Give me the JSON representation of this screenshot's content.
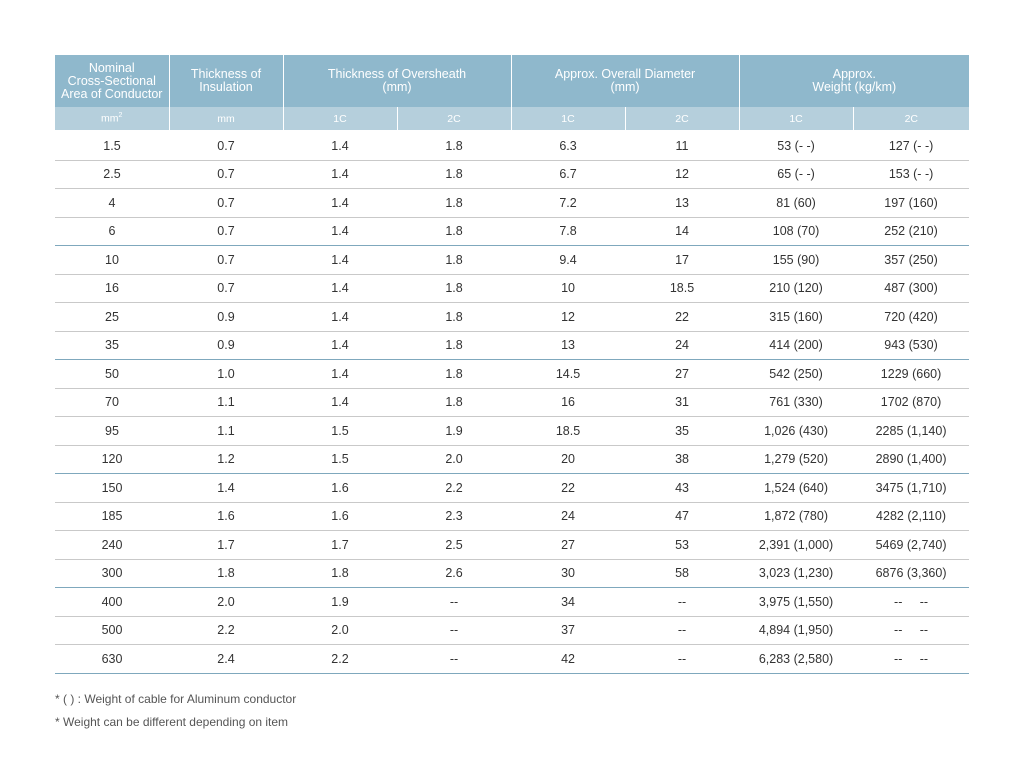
{
  "header": {
    "col0": [
      "Nominal",
      "Cross-Sectional",
      "Area of Conductor"
    ],
    "col1": [
      "Thickness of",
      "Insulation"
    ],
    "col2": [
      "Thickness of Oversheath",
      "(mm)"
    ],
    "col3": [
      "Approx. Overall Diameter",
      "(mm)"
    ],
    "col4": [
      "Approx.",
      "Weight (kg/km)"
    ]
  },
  "units": {
    "area": "mm",
    "area_sup": "2",
    "insulation": "mm",
    "sheath_1c": "1C",
    "sheath_2c": "2C",
    "dia_1c": "1C",
    "dia_2c": "2C",
    "wt_1c": "1C",
    "wt_2c": "2C"
  },
  "rows": [
    [
      "1.5",
      "0.7",
      "1.4",
      "1.8",
      "6.3",
      "11",
      "53 (- -)",
      "127 (- -)"
    ],
    [
      "2.5",
      "0.7",
      "1.4",
      "1.8",
      "6.7",
      "12",
      "65 (- -)",
      "153 (- -)"
    ],
    [
      "4",
      "0.7",
      "1.4",
      "1.8",
      "7.2",
      "13",
      "81 (60)",
      "197 (160)"
    ],
    [
      "6",
      "0.7",
      "1.4",
      "1.8",
      "7.8",
      "14",
      "108 (70)",
      "252 (210)"
    ],
    [
      "10",
      "0.7",
      "1.4",
      "1.8",
      "9.4",
      "17",
      "155 (90)",
      "357 (250)"
    ],
    [
      "16",
      "0.7",
      "1.4",
      "1.8",
      "10",
      "18.5",
      "210 (120)",
      "487 (300)"
    ],
    [
      "25",
      "0.9",
      "1.4",
      "1.8",
      "12",
      "22",
      "315 (160)",
      "720 (420)"
    ],
    [
      "35",
      "0.9",
      "1.4",
      "1.8",
      "13",
      "24",
      "414 (200)",
      "943 (530)"
    ],
    [
      "50",
      "1.0",
      "1.4",
      "1.8",
      "14.5",
      "27",
      "542 (250)",
      "1229 (660)"
    ],
    [
      "70",
      "1.1",
      "1.4",
      "1.8",
      "16",
      "31",
      "761 (330)",
      "1702 (870)"
    ],
    [
      "95",
      "1.1",
      "1.5",
      "1.9",
      "18.5",
      "35",
      "1,026 (430)",
      "2285 (1,140)"
    ],
    [
      "120",
      "1.2",
      "1.5",
      "2.0",
      "20",
      "38",
      "1,279 (520)",
      "2890 (1,400)"
    ],
    [
      "150",
      "1.4",
      "1.6",
      "2.2",
      "22",
      "43",
      "1,524 (640)",
      "3475 (1,710)"
    ],
    [
      "185",
      "1.6",
      "1.6",
      "2.3",
      "24",
      "47",
      "1,872 (780)",
      "4282 (2,110)"
    ],
    [
      "240",
      "1.7",
      "1.7",
      "2.5",
      "27",
      "53",
      "2,391 (1,000)",
      "5469 (2,740)"
    ],
    [
      "300",
      "1.8",
      "1.8",
      "2.6",
      "30",
      "58",
      "3,023 (1,230)",
      "6876 (3,360)"
    ],
    [
      "400",
      "2.0",
      "1.9",
      "--",
      "34",
      "--",
      "3,975 (1,550)",
      "--     --"
    ],
    [
      "500",
      "2.2",
      "2.0",
      "--",
      "37",
      "--",
      "4,894 (1,950)",
      "--     --"
    ],
    [
      "630",
      "2.4",
      "2.2",
      "--",
      "42",
      "--",
      "6,283 (2,580)",
      "--     --"
    ]
  ],
  "group_end_rows": [
    3,
    7,
    11,
    15
  ],
  "notes": [
    "* (  )  : Weight of cable for Aluminum conductor",
    "* Weight can be different depending on item"
  ],
  "colors": {
    "header_dark": "#8fb8cc",
    "header_light": "#b5cfdc",
    "group_rule": "#7fa8bd",
    "row_rule": "#c9c9c9"
  }
}
